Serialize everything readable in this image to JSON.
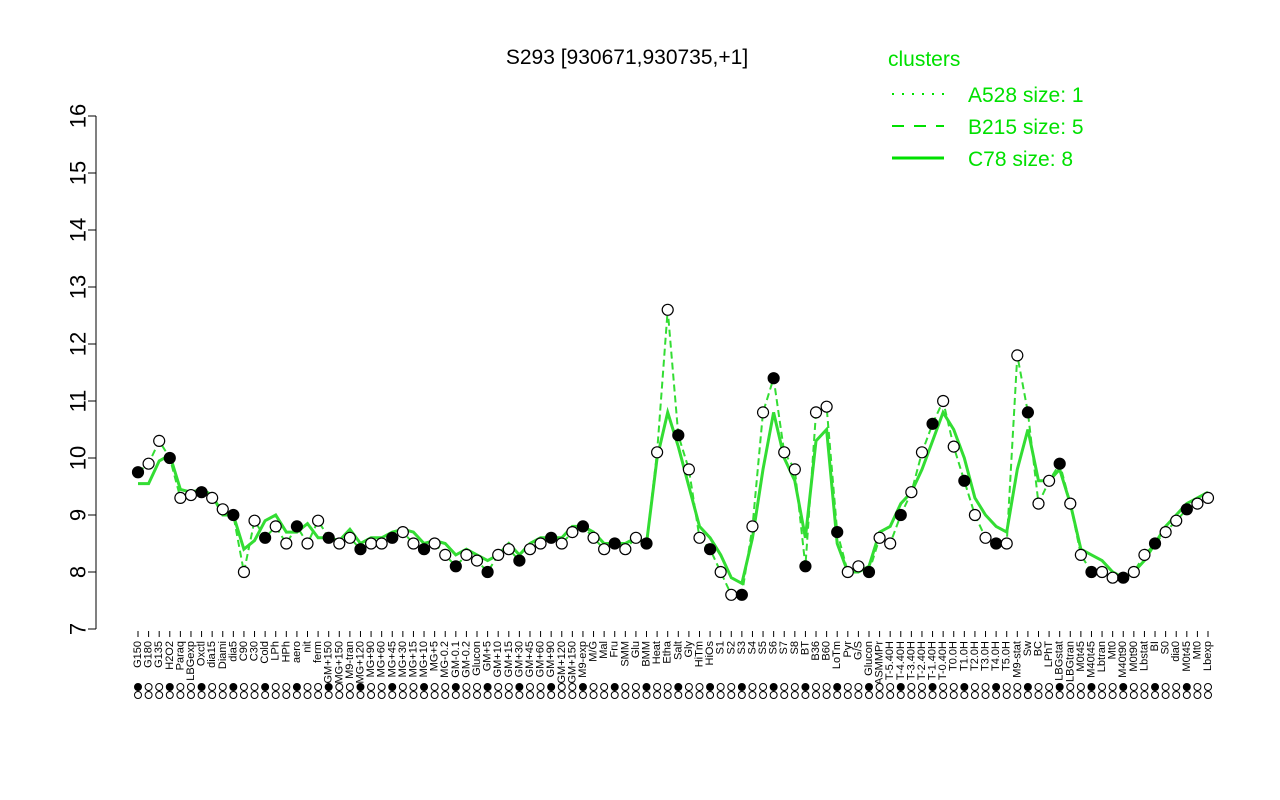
{
  "chart_data": {
    "type": "line",
    "title": "S293 [930671,930735,+1]",
    "xlabel": "",
    "ylabel": "",
    "ylim": [
      7,
      16
    ],
    "yticks": [
      7,
      8,
      9,
      10,
      11,
      12,
      13,
      14,
      15,
      16
    ],
    "grid": false,
    "legend_position": "top-right",
    "legend": {
      "title": "clusters",
      "entries": [
        {
          "label": "A528 size: 1",
          "style": "dotted"
        },
        {
          "label": "B215 size: 5",
          "style": "dashed"
        },
        {
          "label": "C78 size: 8",
          "style": "solid"
        }
      ]
    },
    "x_labels": [
      "G150",
      "G180",
      "G135",
      "H2O2",
      "Paraq",
      "LBGexp",
      "Oxctl",
      "dia15",
      "Diami",
      "dia5",
      "C90",
      "C30",
      "Cold",
      "LPh",
      "HPh",
      "aero",
      "nit",
      "ferm",
      "GM+150",
      "MG+150",
      "M9-tran",
      "MG+120",
      "MG+90",
      "MG+60",
      "MG+45",
      "MG+30",
      "MG+15",
      "MG+10",
      "MG+5",
      "MG-0.2",
      "GM-0.1",
      "GM-0.2",
      "Glucon",
      "GM+5",
      "GM+10",
      "GM+15",
      "GM+30",
      "GM+45",
      "GM+60",
      "GM+90",
      "GM+120",
      "GM+150",
      "M9-exp",
      "M/G",
      "Mal",
      "Fru",
      "SMM",
      "Glu",
      "BMM",
      "Heat",
      "Etha",
      "Salt",
      "Gly",
      "HiTm",
      "HiOs",
      "S1",
      "S2",
      "S3",
      "S4",
      "S5",
      "S6",
      "S7",
      "S8",
      "BT",
      "B36",
      "B60",
      "LoTm",
      "Pyr",
      "G/S",
      "Glucon",
      "ASMMPr",
      "T-5.40H",
      "T-4.40H",
      "T-3.40H",
      "T-2.40H",
      "T-1.40H",
      "T-0.40H",
      "T0.0H",
      "T1.0H",
      "T2.0H",
      "T3.0H",
      "T4.0H",
      "T5.0H",
      "M9-stat",
      "Sw",
      "BC",
      "LPhT",
      "LBGstat",
      "LBGtran",
      "M0t45",
      "M40t45",
      "Lbtran",
      "Mt0",
      "M40t90",
      "M0t90",
      "Lbstat",
      "BI",
      "S0",
      "dia0",
      "M0t45",
      "Mt0",
      "Lbexp"
    ],
    "series": [
      {
        "style": "solid",
        "values": [
          9.55,
          9.55,
          9.95,
          10.05,
          9.45,
          9.4,
          9.45,
          9.35,
          9.0,
          9.0,
          8.4,
          8.55,
          8.9,
          9.0,
          8.7,
          8.7,
          8.85,
          8.6,
          8.6,
          8.55,
          8.75,
          8.5,
          8.6,
          8.6,
          8.7,
          8.75,
          8.7,
          8.5,
          8.55,
          8.5,
          8.3,
          8.4,
          8.3,
          8.2,
          8.3,
          8.5,
          8.3,
          8.5,
          8.6,
          8.6,
          8.6,
          8.8,
          8.8,
          8.7,
          8.5,
          8.5,
          8.5,
          8.6,
          8.5,
          10.0,
          10.8,
          10.2,
          9.5,
          8.8,
          8.6,
          8.3,
          7.9,
          7.8,
          8.6,
          9.8,
          10.8,
          10.0,
          9.6,
          8.6,
          10.3,
          10.5,
          8.5,
          8.0,
          8.0,
          8.1,
          8.7,
          8.8,
          9.2,
          9.4,
          9.8,
          10.3,
          10.8,
          10.5,
          10.0,
          9.3,
          9.0,
          8.8,
          8.7,
          9.8,
          10.5,
          9.6,
          9.6,
          9.8,
          9.2,
          8.4,
          8.3,
          8.2,
          8.0,
          7.9,
          8.0,
          8.2,
          8.5,
          8.8,
          9.0,
          9.2,
          9.3,
          9.4
        ]
      },
      {
        "style": "dashed",
        "values": [
          9.75,
          9.9,
          10.3,
          10.0,
          9.3,
          9.35,
          9.4,
          9.3,
          9.1,
          9.0,
          8.0,
          8.9,
          8.6,
          8.8,
          8.5,
          8.8,
          8.5,
          8.9,
          8.6,
          8.5,
          8.6,
          8.4,
          8.5,
          8.5,
          8.6,
          8.7,
          8.5,
          8.4,
          8.5,
          8.3,
          8.1,
          8.3,
          8.2,
          8.0,
          8.3,
          8.4,
          8.2,
          8.4,
          8.5,
          8.6,
          8.5,
          8.7,
          8.8,
          8.6,
          8.4,
          8.5,
          8.4,
          8.6,
          8.5,
          10.1,
          12.6,
          10.4,
          9.8,
          8.6,
          8.4,
          8.0,
          7.6,
          7.6,
          8.8,
          10.8,
          11.4,
          10.1,
          9.8,
          8.1,
          10.8,
          10.9,
          8.7,
          8.0,
          8.1,
          8.0,
          8.6,
          8.5,
          9.0,
          9.4,
          10.1,
          10.6,
          11.0,
          10.2,
          9.6,
          9.0,
          8.6,
          8.5,
          8.5,
          11.8,
          10.8,
          9.2,
          9.6,
          9.9,
          9.2,
          8.3,
          8.0,
          8.0,
          7.9,
          7.9,
          8.0,
          8.3,
          8.5,
          8.7,
          8.9,
          9.1,
          9.2,
          9.3
        ]
      }
    ]
  }
}
